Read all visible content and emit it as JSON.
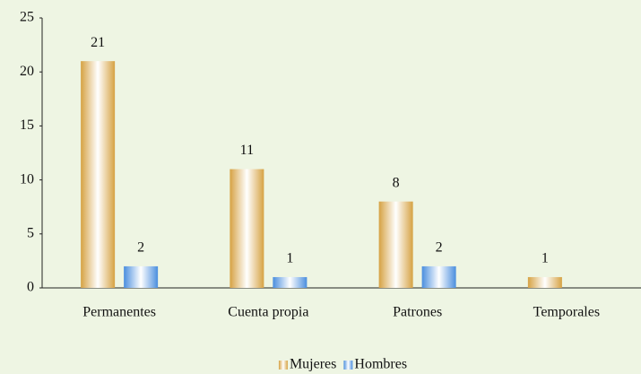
{
  "chart_data": {
    "type": "bar",
    "categories": [
      "Permanentes",
      "Cuenta propia",
      "Patrones",
      "Temporales"
    ],
    "series": [
      {
        "name": "Mujeres",
        "color": "#d6a243",
        "values": [
          21,
          11,
          8,
          1
        ]
      },
      {
        "name": "Hombres",
        "color": "#4a8ede",
        "values": [
          2,
          1,
          2,
          null
        ]
      }
    ],
    "ylim": [
      0,
      25
    ],
    "yticks": [
      0,
      5,
      10,
      15,
      20,
      25
    ],
    "grid": false,
    "legend": "bottom"
  }
}
